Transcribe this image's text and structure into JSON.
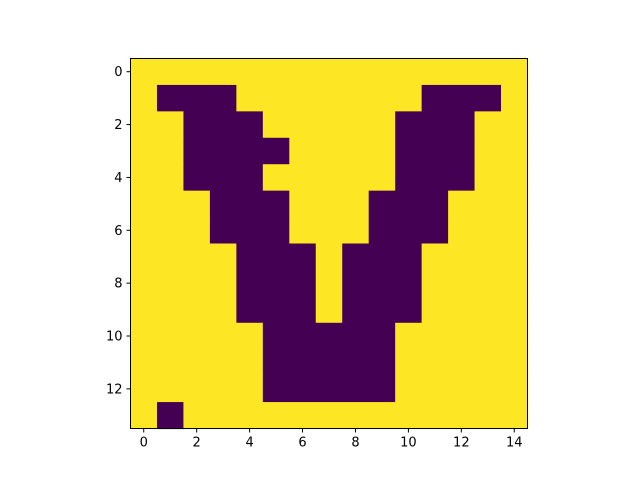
{
  "chart_data": {
    "type": "heatmap",
    "title": "",
    "xlabel": "",
    "ylabel": "",
    "xlim": [
      -0.5,
      14.5
    ],
    "ylim": [
      13.5,
      -0.5
    ],
    "y_inverted": true,
    "grid": false,
    "legend": "none",
    "x_ticks": [
      0,
      2,
      4,
      6,
      8,
      10,
      12,
      14
    ],
    "y_ticks": [
      0,
      2,
      4,
      6,
      8,
      10,
      12
    ],
    "colormap": {
      "0": "#440154",
      "1": "#fde725"
    },
    "values": [
      [
        1,
        1,
        1,
        1,
        1,
        1,
        1,
        1,
        1,
        1,
        1,
        1,
        1,
        1,
        1
      ],
      [
        1,
        0,
        0,
        0,
        1,
        1,
        1,
        1,
        1,
        1,
        1,
        0,
        0,
        0,
        1
      ],
      [
        1,
        1,
        0,
        0,
        0,
        1,
        1,
        1,
        1,
        1,
        0,
        0,
        0,
        1,
        1
      ],
      [
        1,
        1,
        0,
        0,
        0,
        0,
        1,
        1,
        1,
        1,
        0,
        0,
        0,
        1,
        1
      ],
      [
        1,
        1,
        0,
        0,
        0,
        1,
        1,
        1,
        1,
        1,
        0,
        0,
        0,
        1,
        1
      ],
      [
        1,
        1,
        1,
        0,
        0,
        0,
        1,
        1,
        1,
        0,
        0,
        0,
        1,
        1,
        1
      ],
      [
        1,
        1,
        1,
        0,
        0,
        0,
        1,
        1,
        1,
        0,
        0,
        0,
        1,
        1,
        1
      ],
      [
        1,
        1,
        1,
        1,
        0,
        0,
        0,
        1,
        0,
        0,
        0,
        1,
        1,
        1,
        1
      ],
      [
        1,
        1,
        1,
        1,
        0,
        0,
        0,
        1,
        0,
        0,
        0,
        1,
        1,
        1,
        1
      ],
      [
        1,
        1,
        1,
        1,
        0,
        0,
        0,
        1,
        0,
        0,
        0,
        1,
        1,
        1,
        1
      ],
      [
        1,
        1,
        1,
        1,
        1,
        0,
        0,
        0,
        0,
        0,
        1,
        1,
        1,
        1,
        1
      ],
      [
        1,
        1,
        1,
        1,
        1,
        0,
        0,
        0,
        0,
        0,
        1,
        1,
        1,
        1,
        1
      ],
      [
        1,
        1,
        1,
        1,
        1,
        0,
        0,
        0,
        0,
        0,
        1,
        1,
        1,
        1,
        1
      ],
      [
        1,
        0,
        1,
        1,
        1,
        1,
        1,
        1,
        1,
        1,
        1,
        1,
        1,
        1,
        1
      ]
    ]
  }
}
